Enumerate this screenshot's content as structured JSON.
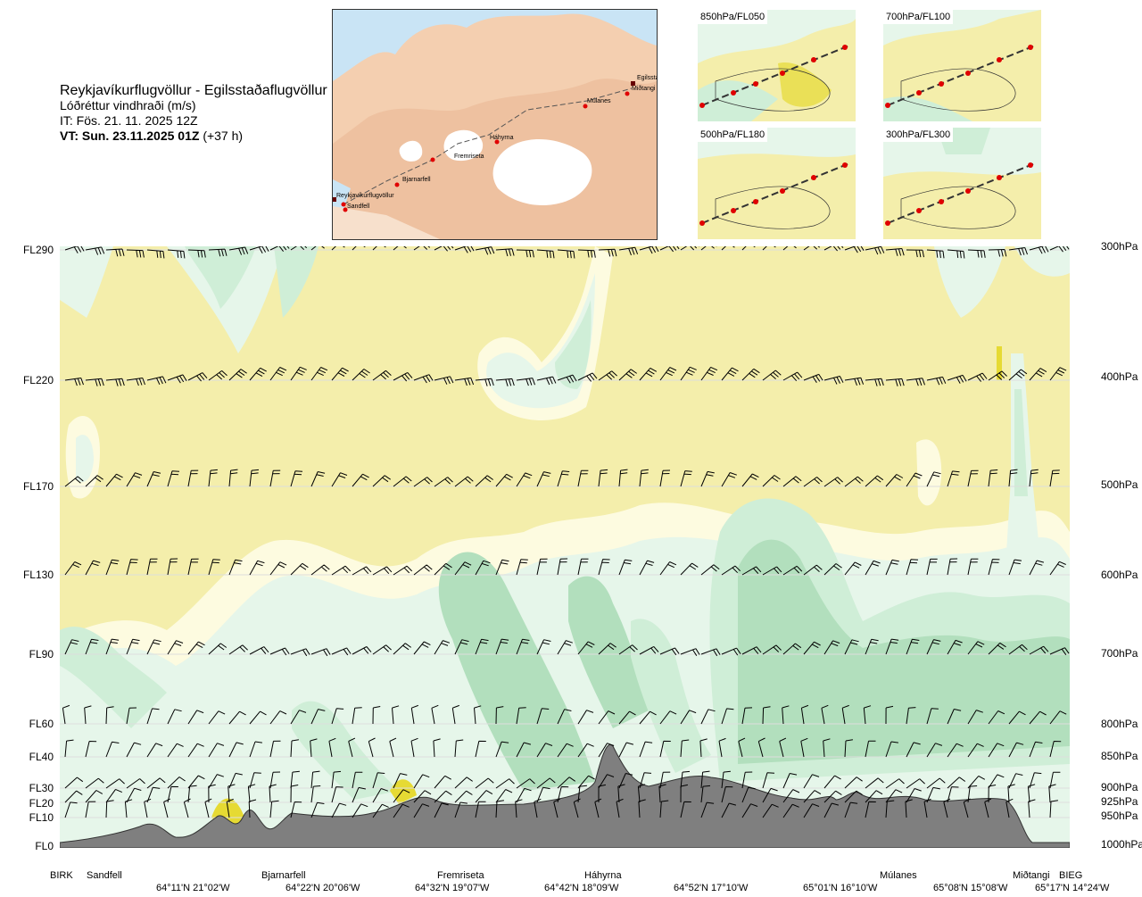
{
  "title": {
    "route": "Reykjavíkurflugvöllur - Egilsstaðaflugvöllur",
    "variable": "Lóðréttur vindhraði (m/s)",
    "it": "IT: Fös. 21. 11. 2025 12Z",
    "vt_bold": "VT: Sun. 23.11.2025 01Z",
    "vt_lead": "(+37 h)"
  },
  "route_map": {
    "labels": [
      "Reykjavíkurflugvöllur",
      "Sandfell",
      "Bjarnarfell",
      "Fremriseta",
      "Háhyrna",
      "Múlanes",
      "Egilsstaðir",
      "Miðtangi"
    ]
  },
  "mini_maps": [
    {
      "label": "850hPa/FL050"
    },
    {
      "label": "700hPa/FL100"
    },
    {
      "label": "500hPa/FL180"
    },
    {
      "label": "300hPa/FL300"
    }
  ],
  "levels": [
    {
      "fl": "FL290",
      "hpa": "300hPa"
    },
    {
      "fl": "FL220",
      "hpa": "400hPa"
    },
    {
      "fl": "FL170",
      "hpa": "500hPa"
    },
    {
      "fl": "FL130",
      "hpa": "600hPa"
    },
    {
      "fl": "FL90",
      "hpa": "700hPa"
    },
    {
      "fl": "FL60",
      "hpa": "800hPa"
    },
    {
      "fl": "FL40",
      "hpa": "850hPa"
    },
    {
      "fl": "FL30",
      "hpa": "900hPa"
    },
    {
      "fl": "FL20",
      "hpa": "925hPa"
    },
    {
      "fl": "FL10",
      "hpa": "950hPa"
    },
    {
      "fl": "FL0",
      "hpa": "1000hPa"
    }
  ],
  "waypoints": [
    "BIRK",
    "Sandfell",
    "Bjarnarfell",
    "Fremriseta",
    "Háhyrna",
    "Múlanes",
    "Miðtangi",
    "BIEG"
  ],
  "coordinates": [
    "64°11'N 21°02'W",
    "64°22'N 20°06'W",
    "64°32'N 19°07'W",
    "64°42'N 18°09'W",
    "64°52'N 17°10'W",
    "65°01'N 16°10'W",
    "65°08'N 15°08'W",
    "65°17'N 14°24'W"
  ],
  "colors": {
    "background": "#f4eeab",
    "light_cream": "#fdfbe0",
    "pale_green": "#e6f6ea",
    "light_green": "#cfeed7",
    "medium_green": "#b2dfbd",
    "yellow": "#e6da33",
    "terrain": "#7f7f7f"
  }
}
